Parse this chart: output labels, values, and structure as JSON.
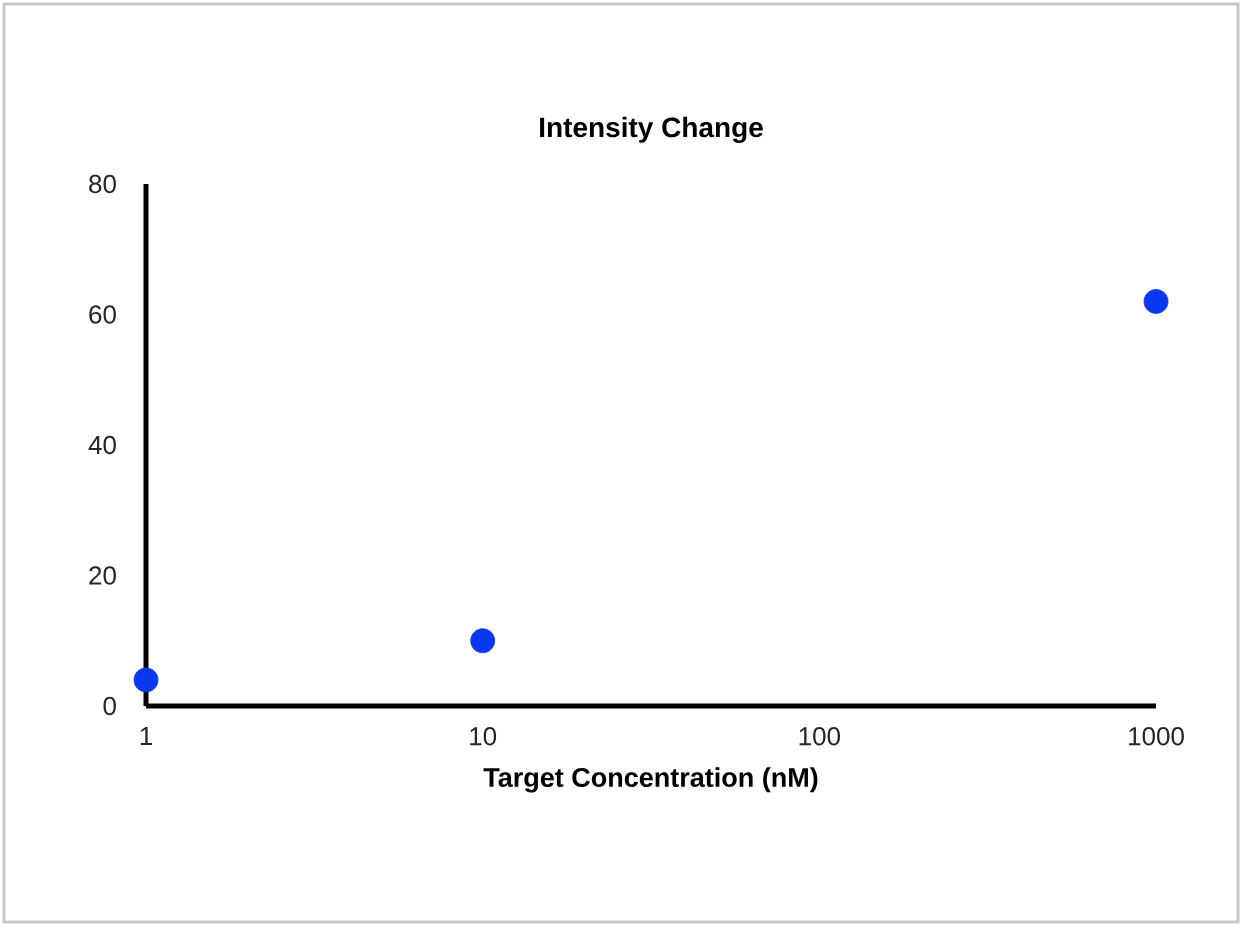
{
  "chart_data": {
    "type": "scatter",
    "title": "Intensity Change",
    "xlabel": "Target Concentration (nM)",
    "x": [
      1,
      10,
      1000
    ],
    "series": [
      {
        "color": "#0a37f0",
        "values": [
          4,
          10,
          62
        ]
      }
    ],
    "log": "x",
    "xlim": [
      1,
      1000
    ],
    "xticks": [
      1,
      10,
      100,
      1000
    ],
    "ylim": [
      0,
      80
    ],
    "yticks": [
      0,
      20,
      40,
      60,
      80
    ],
    "marker": "circle",
    "grid": false
  }
}
